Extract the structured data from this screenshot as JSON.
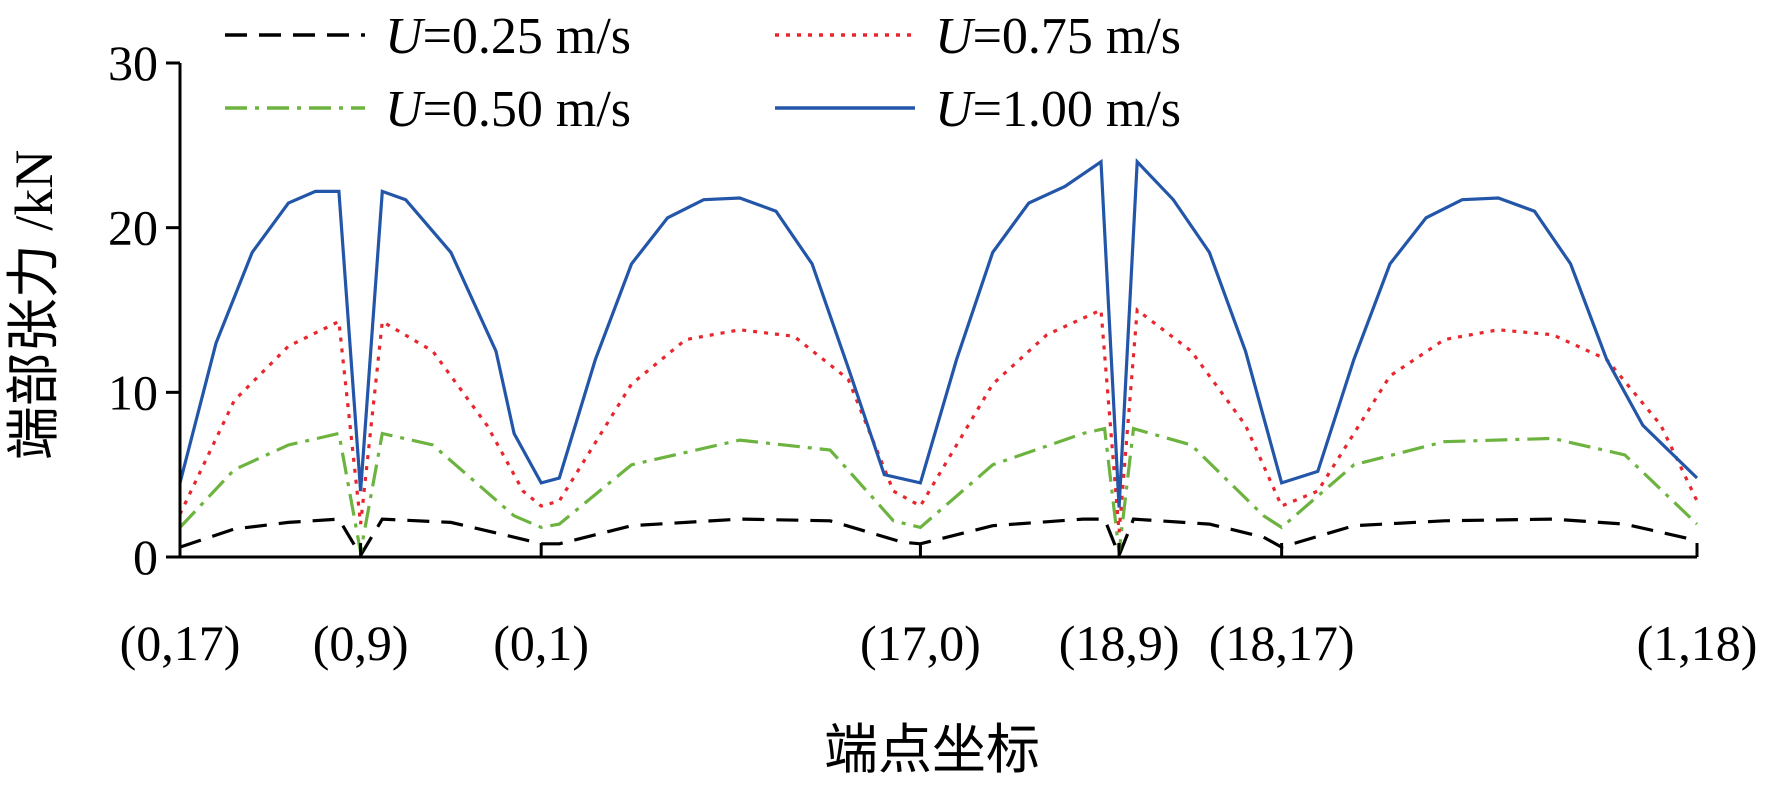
{
  "chart_data": {
    "type": "line",
    "xlabel": "端点坐标",
    "ylabel": "端部张力 /kN",
    "ylim": [
      0,
      30
    ],
    "yticks": [
      0,
      10,
      20,
      30
    ],
    "xlim": [
      0,
      8.4
    ],
    "xticks": [
      {
        "x": 0,
        "label": "(0,17)"
      },
      {
        "x": 1,
        "label": "(0,9)"
      },
      {
        "x": 2,
        "label": "(0,1)"
      },
      {
        "x": 4.1,
        "label": "(17,0)"
      },
      {
        "x": 5.2,
        "label": "(18,9)"
      },
      {
        "x": 6.1,
        "label": "(18,17)"
      },
      {
        "x": 8.4,
        "label": "(1,18)"
      }
    ],
    "grid": false,
    "legend_position": "top",
    "series": [
      {
        "name": "U = 0.25 m/s",
        "legend": {
          "symbol": "U",
          "rest": "=0.25 m/s"
        },
        "color": "#000000",
        "dash": "22,12",
        "x": [
          0,
          0.3,
          0.6,
          0.88,
          1,
          1.12,
          1.5,
          1.85,
          2,
          2.1,
          2.5,
          3.1,
          3.6,
          4.0,
          4.1,
          4.5,
          5.0,
          5.12,
          5.2,
          5.28,
          5.7,
          6.0,
          6.1,
          6.5,
          7.0,
          7.6,
          8.0,
          8.4
        ],
        "y": [
          0.6,
          1.7,
          2.1,
          2.3,
          0.1,
          2.3,
          2.1,
          1.2,
          0.8,
          0.8,
          1.9,
          2.3,
          2.2,
          0.9,
          0.8,
          1.9,
          2.3,
          2.3,
          0.1,
          2.3,
          2.0,
          1.2,
          0.6,
          1.9,
          2.2,
          2.3,
          2.0,
          1.0
        ]
      },
      {
        "name": "U = 0.50 m/s",
        "legend": {
          "symbol": "U",
          "rest": "=0.50 m/s"
        },
        "color": "#6db33f",
        "dash": "22,8,4,8",
        "x": [
          0,
          0.3,
          0.6,
          0.88,
          1,
          1.12,
          1.4,
          1.85,
          2,
          2.1,
          2.5,
          3.1,
          3.6,
          3.95,
          4.1,
          4.5,
          5.0,
          5.12,
          5.2,
          5.28,
          5.6,
          6.0,
          6.1,
          6.5,
          7.0,
          7.6,
          8.0,
          8.4
        ],
        "y": [
          1.8,
          5.3,
          6.8,
          7.5,
          0.3,
          7.5,
          6.8,
          2.5,
          1.8,
          2.0,
          5.6,
          7.1,
          6.5,
          2.2,
          1.8,
          5.6,
          7.5,
          7.8,
          0.3,
          7.8,
          6.8,
          2.5,
          1.8,
          5.6,
          7.0,
          7.2,
          6.2,
          2.0
        ]
      },
      {
        "name": "U = 0.75 m/s",
        "legend": {
          "symbol": "U",
          "rest": "=0.75 m/s"
        },
        "color": "#e8262e",
        "dash": "4,7",
        "x": [
          0,
          0.3,
          0.6,
          0.88,
          1,
          1.12,
          1.4,
          1.7,
          1.9,
          2,
          2.1,
          2.5,
          2.8,
          3.1,
          3.4,
          3.7,
          3.95,
          4.1,
          4.5,
          4.8,
          5.1,
          5.2,
          5.3,
          5.6,
          5.9,
          6.1,
          6.3,
          6.7,
          7.0,
          7.3,
          7.6,
          7.9,
          8.2,
          8.4
        ],
        "y": [
          2.6,
          9.5,
          12.8,
          14.3,
          2.0,
          14.3,
          12.5,
          8.0,
          4.0,
          3.1,
          3.4,
          10.5,
          13.2,
          13.8,
          13.4,
          10.8,
          4.0,
          3.1,
          10.5,
          13.5,
          15.0,
          1.5,
          15.0,
          12.5,
          8.0,
          3.1,
          4.0,
          11.0,
          13.2,
          13.8,
          13.5,
          12.0,
          8.0,
          3.4
        ]
      },
      {
        "name": "U = 1.00 m/s",
        "legend": {
          "symbol": "U",
          "rest": "=1.00 m/s"
        },
        "color": "#2356a8",
        "dash": "",
        "x": [
          0,
          0.2,
          0.4,
          0.6,
          0.75,
          0.88,
          1,
          1.12,
          1.25,
          1.5,
          1.75,
          1.85,
          2,
          2.1,
          2.3,
          2.5,
          2.7,
          2.9,
          3.1,
          3.3,
          3.5,
          3.7,
          3.9,
          4.1,
          4.3,
          4.5,
          4.7,
          4.9,
          5.1,
          5.2,
          5.3,
          5.5,
          5.7,
          5.9,
          6.1,
          6.3,
          6.5,
          6.7,
          6.9,
          7.1,
          7.3,
          7.5,
          7.7,
          7.9,
          8.1,
          8.4
        ],
        "y": [
          4.5,
          13.0,
          18.5,
          21.5,
          22.2,
          22.2,
          4.0,
          22.2,
          21.7,
          18.5,
          12.5,
          7.5,
          4.5,
          4.8,
          12.0,
          17.8,
          20.6,
          21.7,
          21.8,
          21.0,
          17.8,
          11.5,
          5.0,
          4.5,
          12.0,
          18.5,
          21.5,
          22.5,
          24.0,
          3.0,
          24.0,
          21.7,
          18.5,
          12.5,
          4.5,
          5.2,
          12.0,
          17.8,
          20.6,
          21.7,
          21.8,
          21.0,
          17.8,
          12.0,
          8.0,
          4.8
        ]
      }
    ]
  }
}
